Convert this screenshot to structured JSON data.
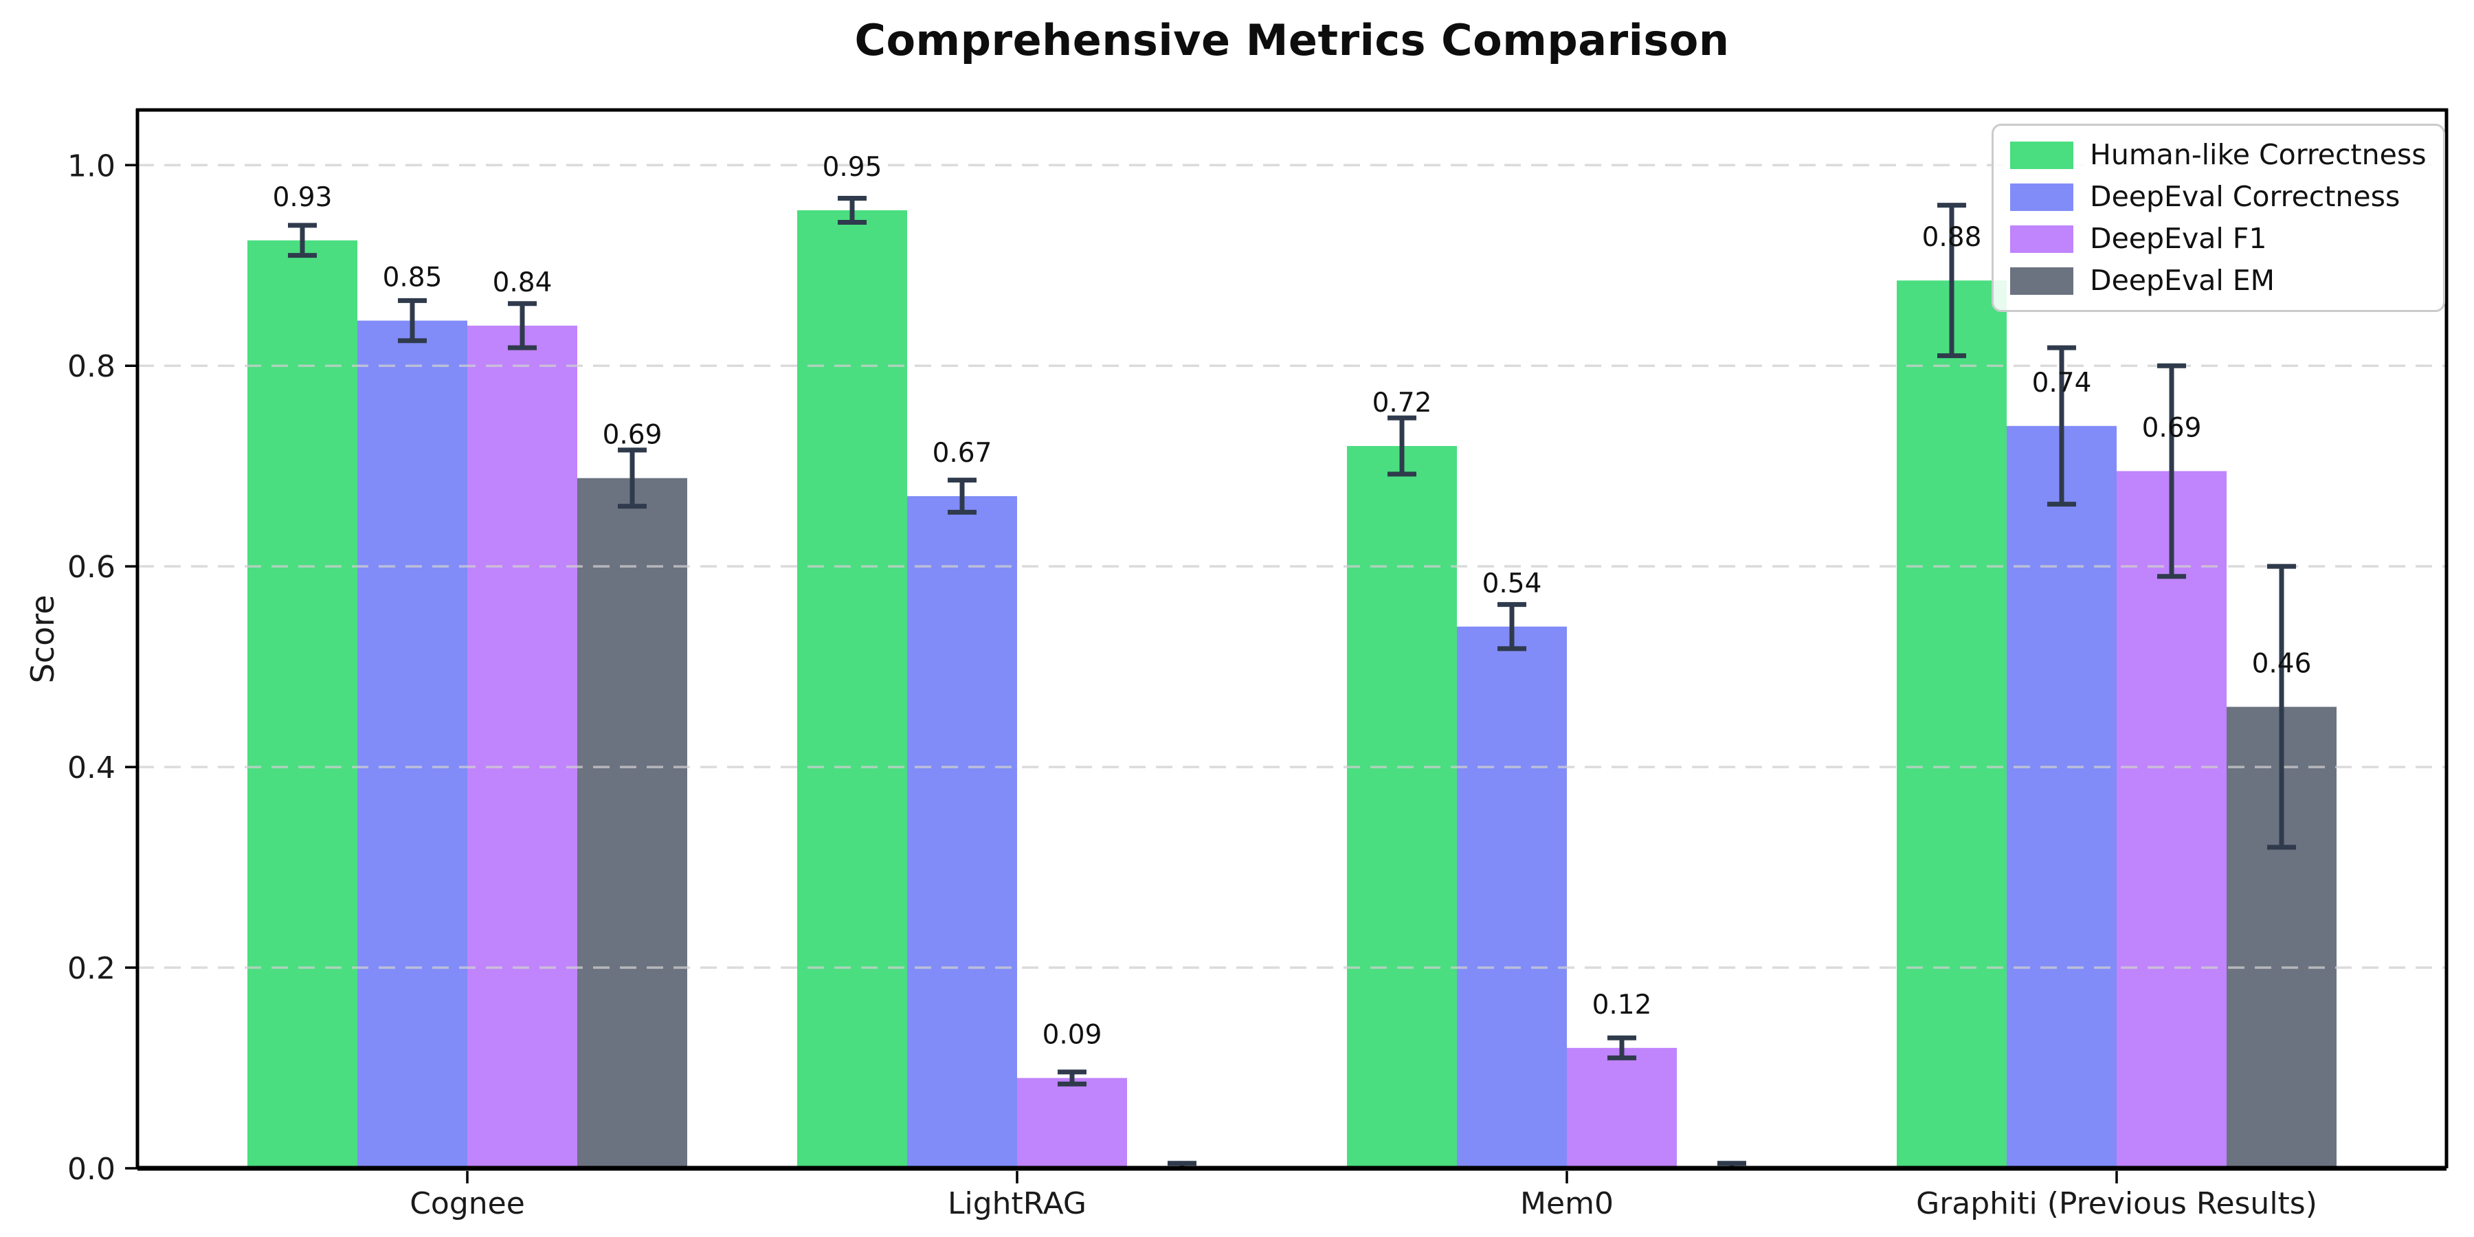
{
  "title": "Comprehensive Metrics Comparison",
  "chart_data": {
    "type": "bar",
    "title": "Comprehensive Metrics Comparison",
    "xlabel": "",
    "ylabel": "Score",
    "categories": [
      "Cognee",
      "LightRAG",
      "Mem0",
      "Graphiti (Previous Results)"
    ],
    "y_ticks": [
      "0.0",
      "0.2",
      "0.4",
      "0.6",
      "0.8",
      "1.0"
    ],
    "ylim": [
      0,
      1.055
    ],
    "grid": {
      "axis": "y",
      "style": "dashed",
      "color": "#cfcfcf",
      "above_bars": true
    },
    "legend": {
      "position": "upper right",
      "entries": [
        "Human-like Correctness",
        "DeepEval Correctness",
        "DeepEval F1",
        "DeepEval EM"
      ]
    },
    "series": [
      {
        "name": "Human-like Correctness",
        "color": "#4ade80",
        "values": [
          0.925,
          0.955,
          0.72,
          0.885
        ],
        "errors": [
          0.015,
          0.012,
          0.028,
          0.075
        ],
        "labels": [
          "0.93",
          "0.95",
          "0.72",
          "0.88"
        ]
      },
      {
        "name": "DeepEval Correctness",
        "color": "#818cf8",
        "values": [
          0.845,
          0.67,
          0.54,
          0.74
        ],
        "errors": [
          0.02,
          0.016,
          0.022,
          0.078
        ],
        "labels": [
          "0.85",
          "0.67",
          "0.54",
          "0.74"
        ]
      },
      {
        "name": "DeepEval F1",
        "color": "#c084fc",
        "values": [
          0.84,
          0.09,
          0.12,
          0.695
        ],
        "errors": [
          0.022,
          0.006,
          0.01,
          0.105
        ],
        "labels": [
          "0.84",
          "0.09",
          "0.12",
          "0.69"
        ]
      },
      {
        "name": "DeepEval EM",
        "color": "#6b7280",
        "values": [
          0.688,
          0.0,
          0.0,
          0.46
        ],
        "errors": [
          0.028,
          0.005,
          0.005,
          0.14
        ],
        "labels": [
          "0.69",
          "",
          "",
          "0.46"
        ]
      }
    ],
    "error_bar_color": "#2f3b4c",
    "bar_label_color": "#111111",
    "axis_color": "#000000"
  }
}
